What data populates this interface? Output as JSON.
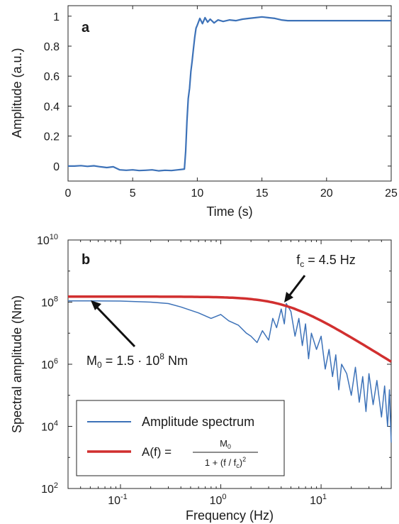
{
  "chart_data": [
    {
      "panel_label": "a",
      "type": "line",
      "xlabel": "Time (s)",
      "ylabel": "Amplitude (a.u.)",
      "xlim": [
        0,
        25
      ],
      "ylim": [
        -0.1,
        1.07
      ],
      "xticks": [
        0,
        5,
        10,
        15,
        20,
        25
      ],
      "yticks": [
        0,
        0.2,
        0.4,
        0.6,
        0.8,
        1
      ],
      "xtick_labels": [
        "0",
        "5",
        "10",
        "15",
        "20",
        "25"
      ],
      "ytick_labels": [
        "0",
        "0.2",
        "0.4",
        "0.6",
        "0.8",
        "1"
      ],
      "grid": false,
      "series": [
        {
          "color": "#3d72b8",
          "x": [
            0,
            0.5,
            1,
            1.5,
            2,
            2.5,
            3,
            3.5,
            4,
            4.5,
            5,
            5.5,
            6,
            6.5,
            7,
            7.5,
            8,
            8.5,
            9,
            9.1,
            9.2,
            9.3,
            9.4,
            9.5,
            9.6,
            9.7,
            9.8,
            9.9,
            10,
            10.2,
            10.4,
            10.6,
            10.8,
            11,
            11.3,
            11.6,
            12,
            12.5,
            13,
            13.5,
            14,
            14.5,
            15,
            15.5,
            16,
            16.5,
            17,
            18,
            19,
            20,
            21,
            22,
            23,
            24,
            25
          ],
          "y": [
            0,
            0,
            0.003,
            -0.002,
            0.002,
            -0.005,
            -0.01,
            -0.005,
            -0.025,
            -0.028,
            -0.025,
            -0.03,
            -0.028,
            -0.025,
            -0.032,
            -0.028,
            -0.03,
            -0.025,
            -0.02,
            0.1,
            0.3,
            0.45,
            0.52,
            0.63,
            0.7,
            0.78,
            0.86,
            0.92,
            0.94,
            0.985,
            0.95,
            0.99,
            0.96,
            0.98,
            0.955,
            0.975,
            0.965,
            0.975,
            0.97,
            0.98,
            0.985,
            0.99,
            0.995,
            0.99,
            0.985,
            0.975,
            0.97,
            0.97,
            0.97,
            0.97,
            0.97,
            0.97,
            0.97,
            0.97,
            0.97
          ]
        }
      ]
    },
    {
      "panel_label": "b",
      "type": "line",
      "xscale": "log",
      "yscale": "log",
      "xlabel": "Frequency (Hz)",
      "ylabel": "Spectral amplitude (Nm)",
      "xlim": [
        0.03,
        50
      ],
      "ylim": [
        100,
        10000000000
      ],
      "xticks": [
        0.1,
        1,
        10
      ],
      "yticks": [
        100,
        10000,
        1000000,
        100000000,
        10000000000
      ],
      "xtick_labels": [
        {
          "base": "10",
          "exp": "-1"
        },
        {
          "base": "10",
          "exp": "0"
        },
        {
          "base": "10",
          "exp": "1"
        }
      ],
      "ytick_labels": [
        {
          "base": "10",
          "exp": "2"
        },
        {
          "base": "10",
          "exp": "4"
        },
        {
          "base": "10",
          "exp": "6"
        },
        {
          "base": "10",
          "exp": "8"
        },
        {
          "base": "10",
          "exp": "10"
        }
      ],
      "grid": false,
      "legend_position": "bottom-left",
      "series": [
        {
          "name": "Amplitude spectrum",
          "color": "#3d72b8",
          "x": [
            0.03,
            0.05,
            0.1,
            0.2,
            0.3,
            0.4,
            0.5,
            0.6,
            0.8,
            1,
            1.2,
            1.5,
            1.8,
            2,
            2.3,
            2.6,
            3,
            3.3,
            3.6,
            4,
            4.3,
            4.5,
            5,
            5.5,
            6,
            6.5,
            7,
            7.5,
            8,
            9,
            10,
            11,
            12,
            13,
            14,
            15,
            16,
            18,
            20,
            22,
            24,
            26,
            28,
            30,
            33,
            36,
            40,
            43,
            46,
            48,
            50
          ],
          "y": [
            110000000,
            110000000,
            108000000,
            100000000,
            90000000,
            70000000,
            55000000,
            45000000,
            30000000,
            40000000,
            25000000,
            18000000,
            10000000,
            8000000,
            5000000,
            12000000,
            6000000,
            30000000,
            15000000,
            60000000,
            20000000,
            90000000,
            50000000,
            8000000,
            30000000,
            4000000,
            20000000,
            1500000,
            10000000,
            3000000,
            8000000,
            700000,
            3000000,
            400000,
            2000000,
            150000,
            1000000,
            500000,
            100000,
            800000,
            60000,
            400000,
            30000,
            500000,
            50000,
            300000,
            20000,
            200000,
            10000,
            150000,
            3000
          ]
        },
        {
          "name_parts": [
            "A(f) = ",
            "M",
            "0",
            "1 + (f / f",
            "c",
            ")",
            "2"
          ],
          "color": "#d12f2f",
          "model": "brune",
          "M0": 150000000,
          "fc": 4.5
        }
      ],
      "annotations": [
        {
          "text_parts": [
            "f",
            "c",
            " = 4.5 Hz"
          ],
          "arrow_to": [
            4.5,
            150000000
          ]
        },
        {
          "text_parts": [
            "M",
            "0",
            " = 1.5 · 10",
            "8",
            " Nm"
          ],
          "arrow_to": [
            0.05,
            150000000
          ]
        }
      ]
    }
  ]
}
